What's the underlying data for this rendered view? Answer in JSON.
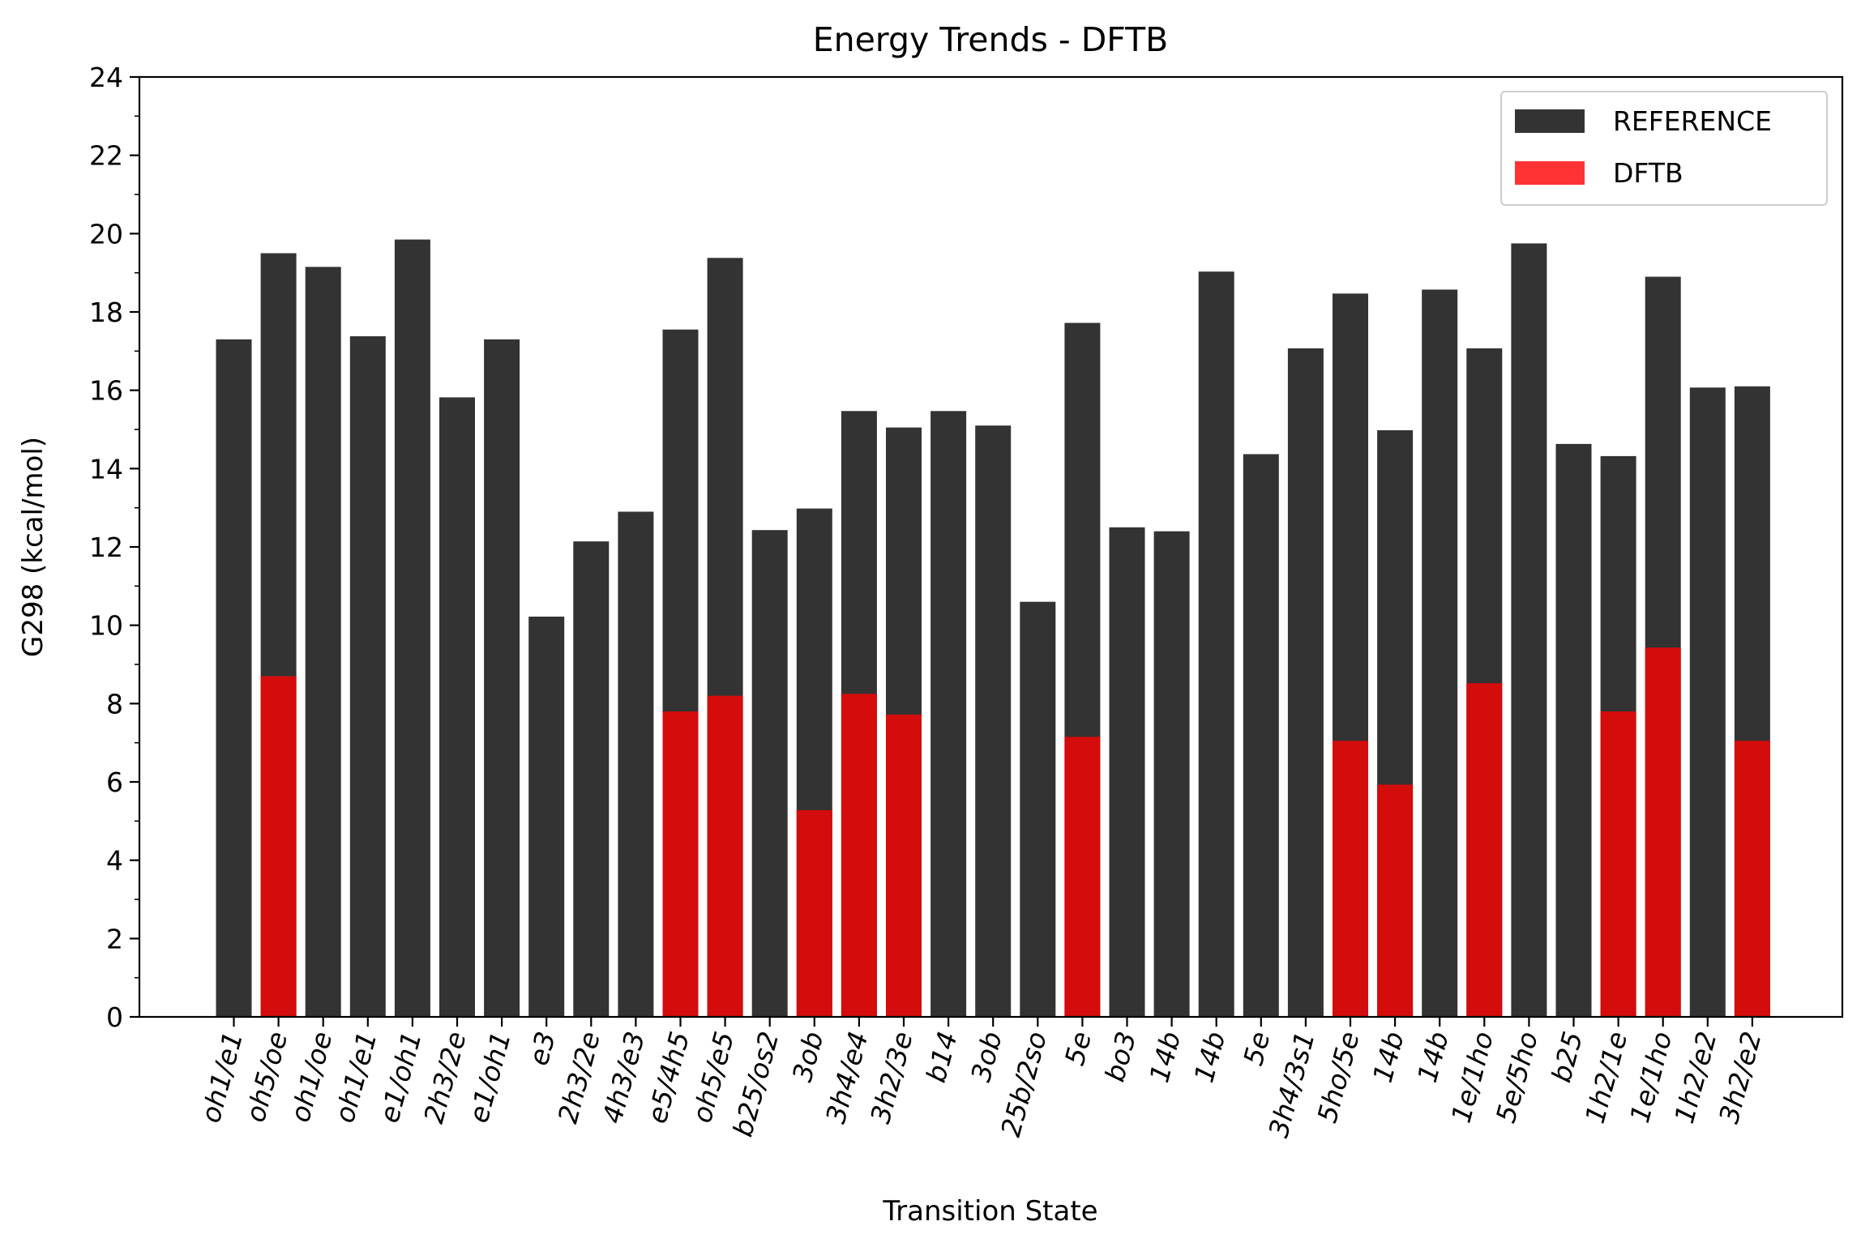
{
  "chart_data": {
    "type": "bar",
    "title": "Energy Trends - DFTB",
    "xlabel": "Transition State",
    "ylabel": "G298 (kcal/mol)",
    "ylim": [
      0,
      24
    ],
    "yticks": [
      0,
      2,
      4,
      6,
      8,
      10,
      12,
      14,
      16,
      18,
      20,
      22,
      24
    ],
    "legend_position": "top-right",
    "grid": false,
    "categories": [
      "oh1/e1",
      "oh5/oe",
      "oh1/oe",
      "oh1/e1",
      "e1/oh1",
      "2h3/2e",
      "e1/oh1",
      "e3",
      "2h3/2e",
      "4h3/e3",
      "e5/4h5",
      "oh5/e5",
      "b25/os2",
      "3ob",
      "3h4/e4",
      "3h2/3e",
      "b14",
      "3ob",
      "25b/2so",
      "5e",
      "bo3",
      "14b",
      "14b",
      "5e",
      "3h4/3s1",
      "5ho/5e",
      "14b",
      "14b",
      "1e/1ho",
      "5e/5ho",
      "b25",
      "1h2/1e",
      "1e/1ho",
      "1h2/e2",
      "3h2/e2"
    ],
    "series": [
      {
        "name": "REFERENCE",
        "color": "#333333",
        "values": [
          17.3,
          19.5,
          19.15,
          17.38,
          19.85,
          15.82,
          17.3,
          10.22,
          12.14,
          12.9,
          17.55,
          19.38,
          12.43,
          12.98,
          15.47,
          15.05,
          15.47,
          15.1,
          10.6,
          17.72,
          12.5,
          12.4,
          19.03,
          14.37,
          17.07,
          18.47,
          14.98,
          18.57,
          17.07,
          19.75,
          14.63,
          14.32,
          18.9,
          16.07,
          16.1
        ]
      },
      {
        "name": "DFTB",
        "color": "#ff3333",
        "values": [
          null,
          8.7,
          null,
          null,
          null,
          null,
          null,
          null,
          null,
          null,
          7.8,
          8.2,
          null,
          5.28,
          8.25,
          7.72,
          null,
          null,
          null,
          7.15,
          null,
          null,
          null,
          null,
          null,
          7.05,
          5.93,
          null,
          8.52,
          null,
          null,
          7.8,
          9.43,
          null,
          7.05
        ]
      }
    ]
  }
}
